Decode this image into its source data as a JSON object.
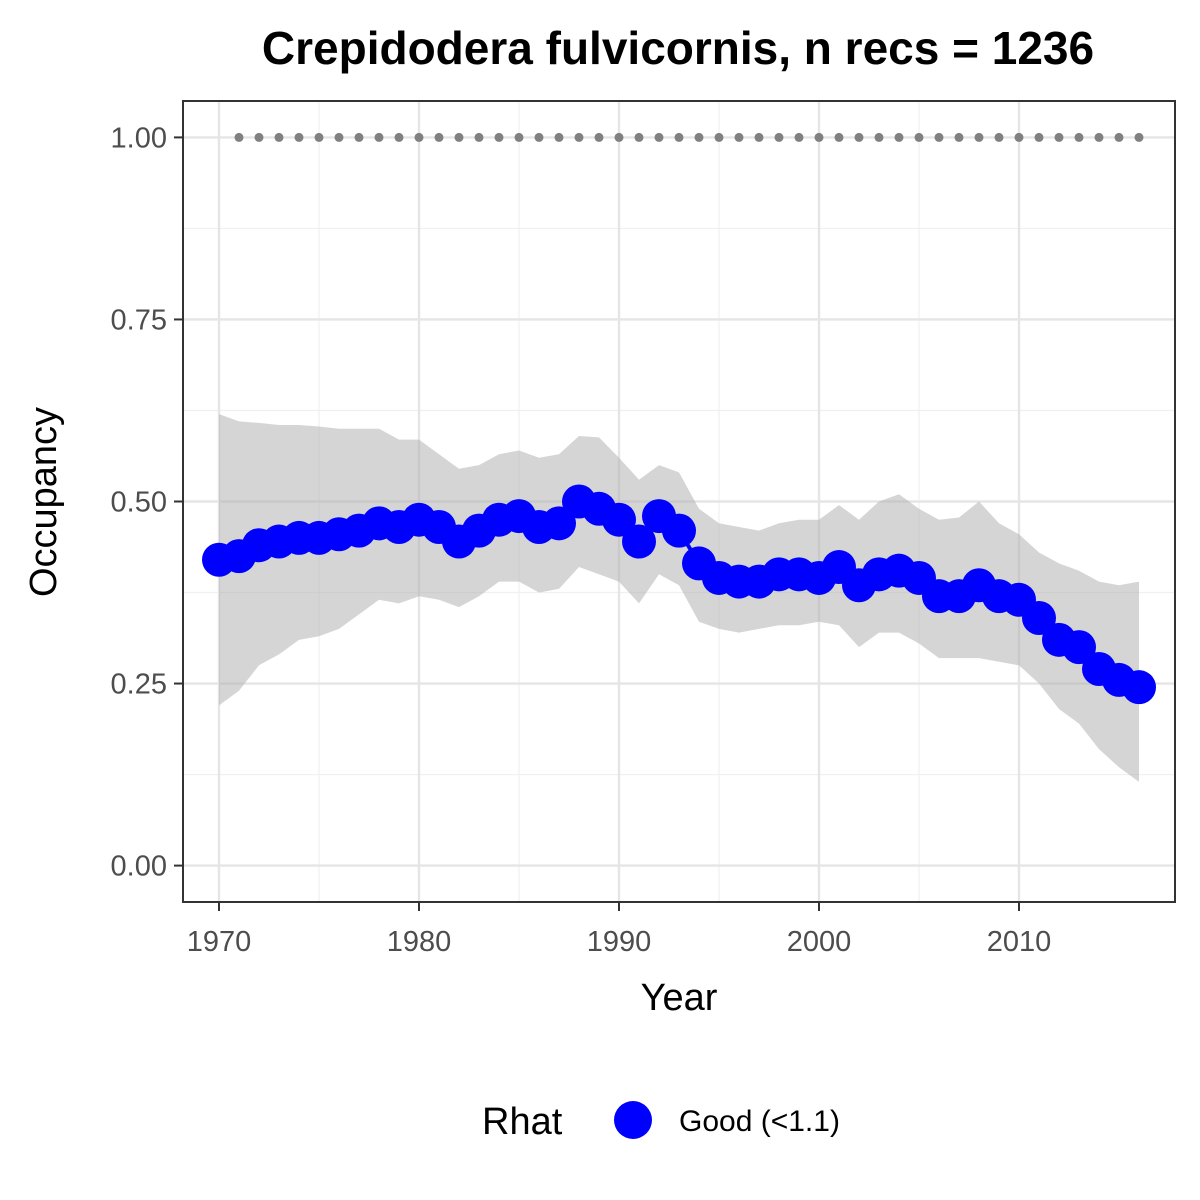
{
  "chart_data": {
    "type": "line",
    "title": "Crepidodera fulvicornis, n recs = 1236",
    "xlabel": "Year",
    "ylabel": "Occupancy",
    "xlim": [
      1968.2,
      2017.8
    ],
    "ylim": [
      -0.05,
      1.05
    ],
    "x_ticks": [
      1970,
      1980,
      1990,
      2000,
      2010
    ],
    "y_ticks": [
      0.0,
      0.25,
      0.5,
      0.75,
      1.0
    ],
    "x_tick_labels": [
      "1970",
      "1980",
      "1990",
      "2000",
      "2010"
    ],
    "y_tick_labels": [
      "0.00",
      "0.25",
      "0.50",
      "0.75",
      "1.00"
    ],
    "grid": true,
    "legend": {
      "title": "Rhat",
      "position": "bottom",
      "entries": [
        {
          "label": "Good (<1.1)",
          "color": "#0000ff"
        }
      ]
    },
    "x": [
      1970,
      1971,
      1972,
      1973,
      1974,
      1975,
      1976,
      1977,
      1978,
      1979,
      1980,
      1981,
      1982,
      1983,
      1984,
      1985,
      1986,
      1987,
      1988,
      1989,
      1990,
      1991,
      1992,
      1993,
      1994,
      1995,
      1996,
      1997,
      1998,
      1999,
      2000,
      2001,
      2002,
      2003,
      2004,
      2005,
      2006,
      2007,
      2008,
      2009,
      2010,
      2011,
      2012,
      2013,
      2014,
      2015,
      2016
    ],
    "series": [
      {
        "role": "mean",
        "color": "#0000ff",
        "values": [
          0.42,
          0.425,
          0.44,
          0.445,
          0.45,
          0.45,
          0.455,
          0.46,
          0.47,
          0.465,
          0.475,
          0.465,
          0.445,
          0.46,
          0.475,
          0.48,
          0.465,
          0.47,
          0.5,
          0.49,
          0.475,
          0.445,
          0.48,
          0.46,
          0.415,
          0.395,
          0.39,
          0.39,
          0.4,
          0.4,
          0.395,
          0.41,
          0.385,
          0.4,
          0.405,
          0.395,
          0.37,
          0.37,
          0.385,
          0.37,
          0.365,
          0.34,
          0.31,
          0.3,
          0.27,
          0.255,
          0.245
        ]
      },
      {
        "role": "lower_bound",
        "color": "#d3d3d3",
        "values": [
          0.22,
          0.24,
          0.275,
          0.29,
          0.31,
          0.315,
          0.325,
          0.345,
          0.365,
          0.36,
          0.37,
          0.365,
          0.355,
          0.37,
          0.39,
          0.39,
          0.375,
          0.38,
          0.41,
          0.4,
          0.39,
          0.36,
          0.4,
          0.385,
          0.335,
          0.325,
          0.32,
          0.325,
          0.33,
          0.33,
          0.335,
          0.33,
          0.3,
          0.32,
          0.32,
          0.305,
          0.285,
          0.285,
          0.285,
          0.28,
          0.275,
          0.25,
          0.215,
          0.195,
          0.16,
          0.135,
          0.115
        ]
      },
      {
        "role": "upper_bound",
        "color": "#d3d3d3",
        "values": [
          0.62,
          0.61,
          0.608,
          0.605,
          0.605,
          0.603,
          0.6,
          0.6,
          0.6,
          0.585,
          0.585,
          0.565,
          0.545,
          0.55,
          0.565,
          0.57,
          0.56,
          0.565,
          0.59,
          0.588,
          0.56,
          0.53,
          0.55,
          0.54,
          0.49,
          0.47,
          0.465,
          0.46,
          0.47,
          0.475,
          0.475,
          0.495,
          0.475,
          0.5,
          0.51,
          0.49,
          0.475,
          0.478,
          0.5,
          0.47,
          0.455,
          0.43,
          0.415,
          0.405,
          0.39,
          0.385,
          0.39
        ]
      },
      {
        "role": "reference",
        "color": "#808080",
        "x": [
          1971,
          1972,
          1973,
          1974,
          1975,
          1976,
          1977,
          1978,
          1979,
          1980,
          1981,
          1982,
          1983,
          1984,
          1985,
          1986,
          1987,
          1988,
          1989,
          1990,
          1991,
          1992,
          1993,
          1994,
          1995,
          1996,
          1997,
          1998,
          1999,
          2000,
          2001,
          2002,
          2003,
          2004,
          2005,
          2006,
          2007,
          2008,
          2009,
          2010,
          2011,
          2012,
          2013,
          2014,
          2015,
          2016
        ],
        "values": [
          1,
          1,
          1,
          1,
          1,
          1,
          1,
          1,
          1,
          1,
          1,
          1,
          1,
          1,
          1,
          1,
          1,
          1,
          1,
          1,
          1,
          1,
          1,
          1,
          1,
          1,
          1,
          1,
          1,
          1,
          1,
          1,
          1,
          1,
          1,
          1,
          1,
          1,
          1,
          1,
          1,
          1,
          1,
          1,
          1,
          1
        ]
      }
    ]
  }
}
